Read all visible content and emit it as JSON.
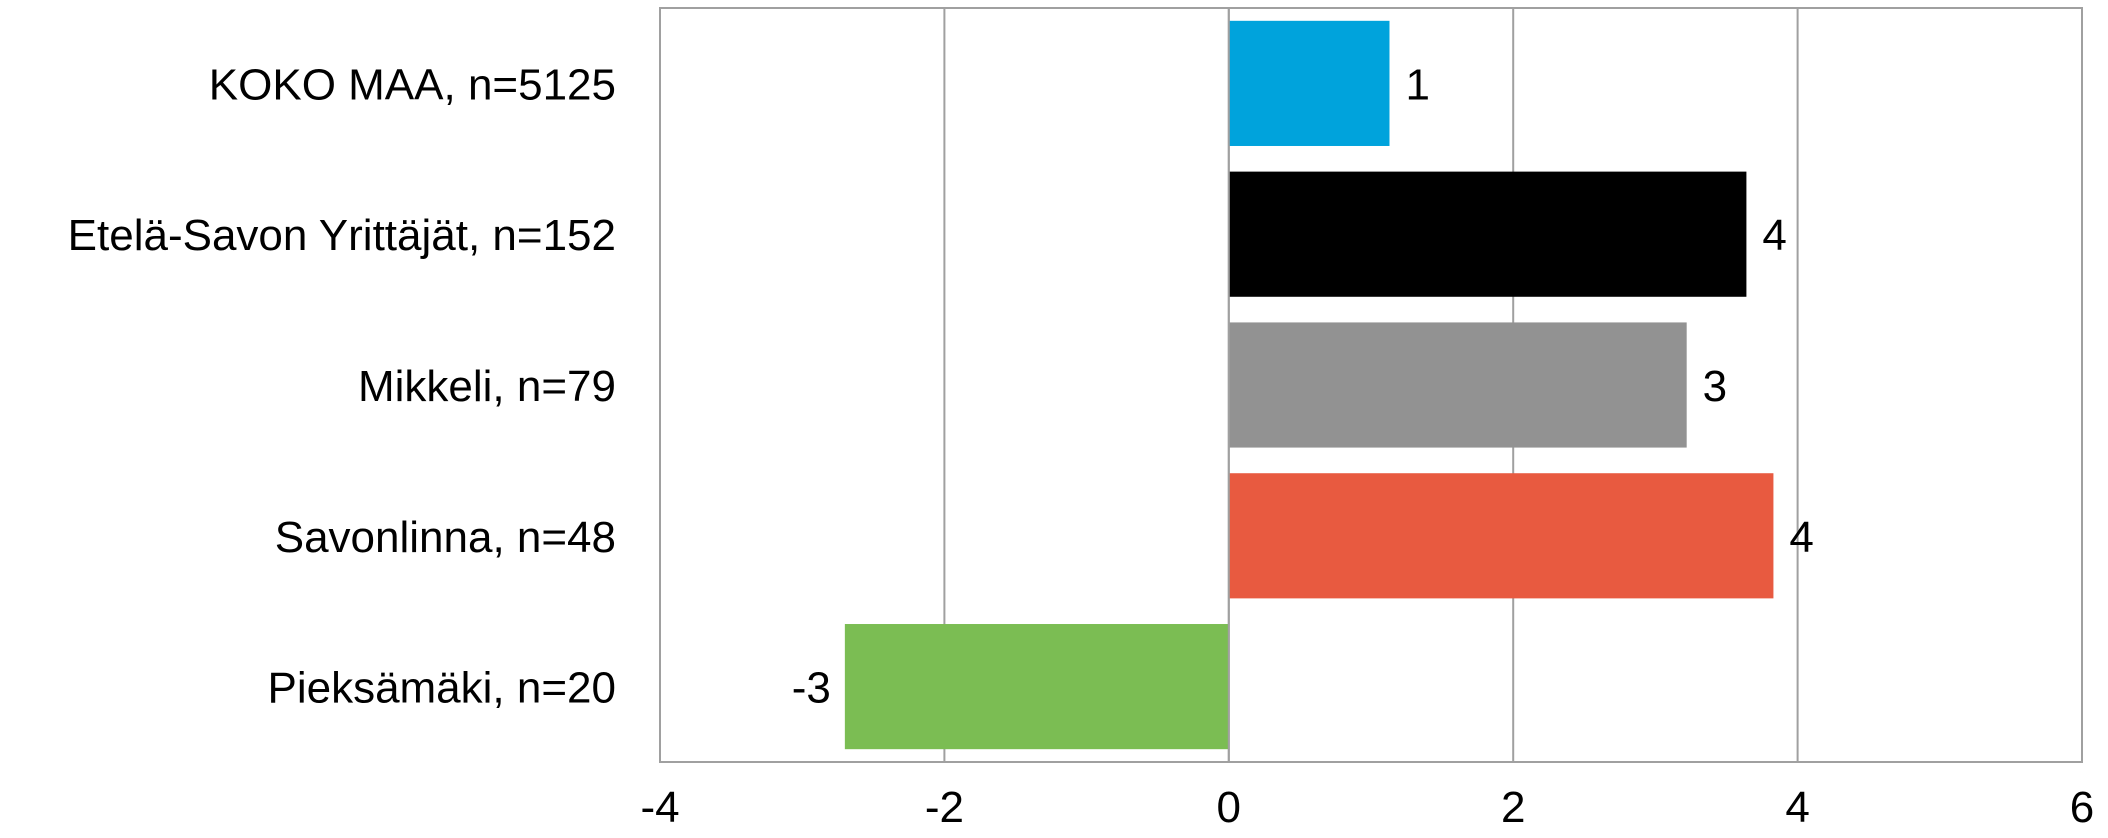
{
  "chart_data": {
    "type": "bar",
    "orientation": "horizontal",
    "categories": [
      "KOKO MAA, n=5125",
      "Etelä-Savon Yrittäjät, n=152",
      "Mikkeli, n=79",
      "Savonlinna, n=48",
      "Pieksämäki, n=20"
    ],
    "values": [
      1.13,
      3.64,
      3.22,
      3.83,
      -2.7
    ],
    "data_labels": [
      "1",
      "4",
      "3",
      "4",
      "-3"
    ],
    "colors": [
      "#00A3DC",
      "#000000",
      "#929292",
      "#E85A40",
      "#7BBD53"
    ],
    "xlim": [
      -4,
      6
    ],
    "x_ticks": [
      -4,
      -2,
      0,
      2,
      4,
      6
    ],
    "x_tick_labels": [
      "-4",
      "-2",
      "0",
      "2",
      "4",
      "6"
    ],
    "grid": "vertical",
    "legend": "none",
    "title": "",
    "xlabel": "",
    "ylabel": ""
  },
  "style": {
    "gridline_color": "#A0A0A0",
    "border_color": "#A0A0A0",
    "text_color": "#000000"
  }
}
